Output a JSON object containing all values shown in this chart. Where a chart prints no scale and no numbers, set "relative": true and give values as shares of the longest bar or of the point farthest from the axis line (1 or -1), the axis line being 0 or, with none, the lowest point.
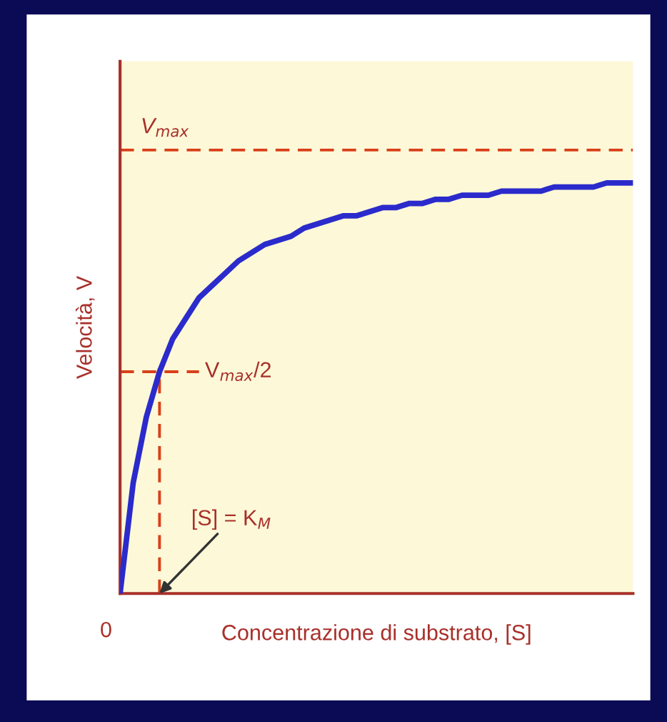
{
  "chart_data": {
    "type": "line",
    "relative": true,
    "xlabel": "Concentrazione di substrato, [S]",
    "ylabel": "Velocità, V",
    "categories": [
      null,
      null,
      null,
      null,
      null,
      null,
      null,
      null,
      null,
      null,
      null,
      null,
      null,
      null,
      null,
      null,
      null,
      null,
      null,
      null,
      null,
      null,
      null,
      null,
      null,
      null,
      null,
      null,
      null,
      null,
      null,
      null,
      null,
      null,
      null,
      null,
      null,
      null,
      null,
      null
    ],
    "series": [
      {
        "color": "#2b2bcc",
        "line_style": "solid",
        "values": [
          0,
          0.27,
          0.43,
          0.54,
          0.62,
          0.67,
          0.72,
          0.75,
          0.78,
          0.81,
          0.83,
          0.85,
          0.86,
          0.87,
          0.89,
          0.9,
          0.91,
          0.92,
          0.92,
          0.93,
          0.94,
          0.94,
          0.95,
          0.95,
          0.96,
          0.96,
          0.97,
          0.97,
          0.97,
          0.98,
          0.98,
          0.98,
          0.98,
          0.99,
          0.99,
          0.99,
          0.99,
          1,
          1,
          1
        ]
      },
      {
        "color": "#d9401a",
        "line_style": "dashed",
        "values": [
          0.54,
          0.54,
          0.54,
          0.54,
          0.54,
          0.54,
          0.54,
          null,
          null,
          null,
          null,
          null,
          null,
          null,
          null,
          null,
          null,
          null,
          null,
          null,
          null,
          null,
          null,
          null,
          null,
          null,
          null,
          null,
          null,
          null,
          null,
          null,
          null,
          null,
          null,
          null,
          null,
          null,
          null,
          null
        ]
      }
    ],
    "ref_lines": [
      {
        "axis": "y",
        "value": 1.08,
        "label": "V$_{max}$",
        "color": "#d9401a",
        "line_style": "dashed"
      }
    ],
    "annotations": [
      "0",
      "V$_{max}$/2",
      "[S] = K$_{M}$"
    ]
  }
}
